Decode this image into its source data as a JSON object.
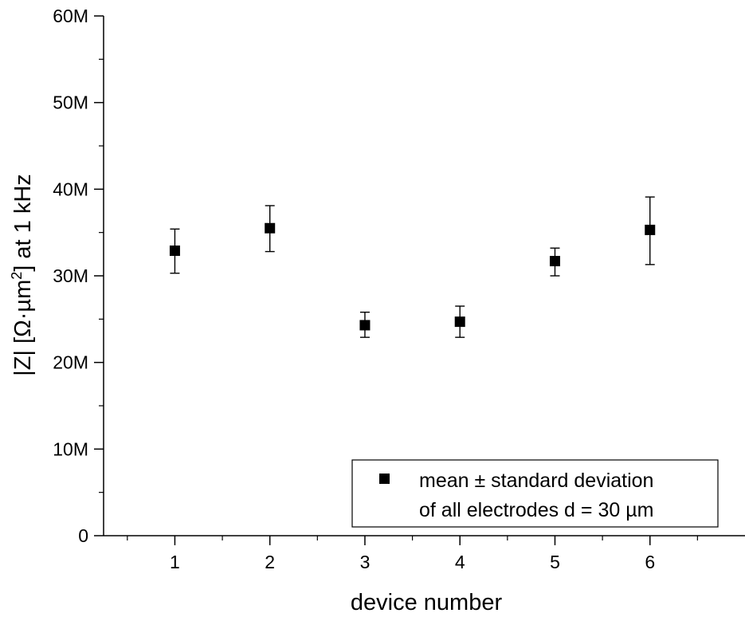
{
  "chart_data": {
    "type": "scatter",
    "xlabel": "device number",
    "ylabel": {
      "pre": "|Z| [Ω·µm",
      "sup": "2",
      "post": "] at 1 kHz"
    },
    "xlim": [
      0.25,
      7.0
    ],
    "ylim": [
      0,
      60000000
    ],
    "x_ticks": [
      1,
      2,
      3,
      4,
      5,
      6
    ],
    "x_tick_labels": [
      "1",
      "2",
      "3",
      "4",
      "5",
      "6"
    ],
    "x_minor_ticks": [
      0.5,
      1.5,
      2.5,
      3.5,
      4.5,
      5.5,
      6.5
    ],
    "y_ticks": [
      0,
      10000000,
      20000000,
      30000000,
      40000000,
      50000000,
      60000000
    ],
    "y_tick_labels": [
      "0",
      "10M",
      "20M",
      "30M",
      "40M",
      "50M",
      "60M"
    ],
    "y_minor_ticks": [
      5000000,
      15000000,
      25000000,
      35000000,
      45000000,
      55000000
    ],
    "grid": false,
    "legend_position": "bottom-right",
    "series": [
      {
        "name": "mean ± standard deviation\nof all electrodes d = 30 µm",
        "marker": "square",
        "color": "#000000",
        "points": [
          {
            "x": 1,
            "y": 32900000,
            "ylow": 30300000,
            "yhigh": 35400000
          },
          {
            "x": 2,
            "y": 35500000,
            "ylow": 32800000,
            "yhigh": 38100000
          },
          {
            "x": 3,
            "y": 24300000,
            "ylow": 22900000,
            "yhigh": 25800000
          },
          {
            "x": 4,
            "y": 24700000,
            "ylow": 22900000,
            "yhigh": 26500000
          },
          {
            "x": 5,
            "y": 31700000,
            "ylow": 30000000,
            "yhigh": 33200000
          },
          {
            "x": 6,
            "y": 35300000,
            "ylow": 31300000,
            "yhigh": 39100000
          }
        ]
      }
    ],
    "legend_lines": [
      "mean ± standard deviation",
      "of all electrodes d = 30 µm"
    ]
  }
}
